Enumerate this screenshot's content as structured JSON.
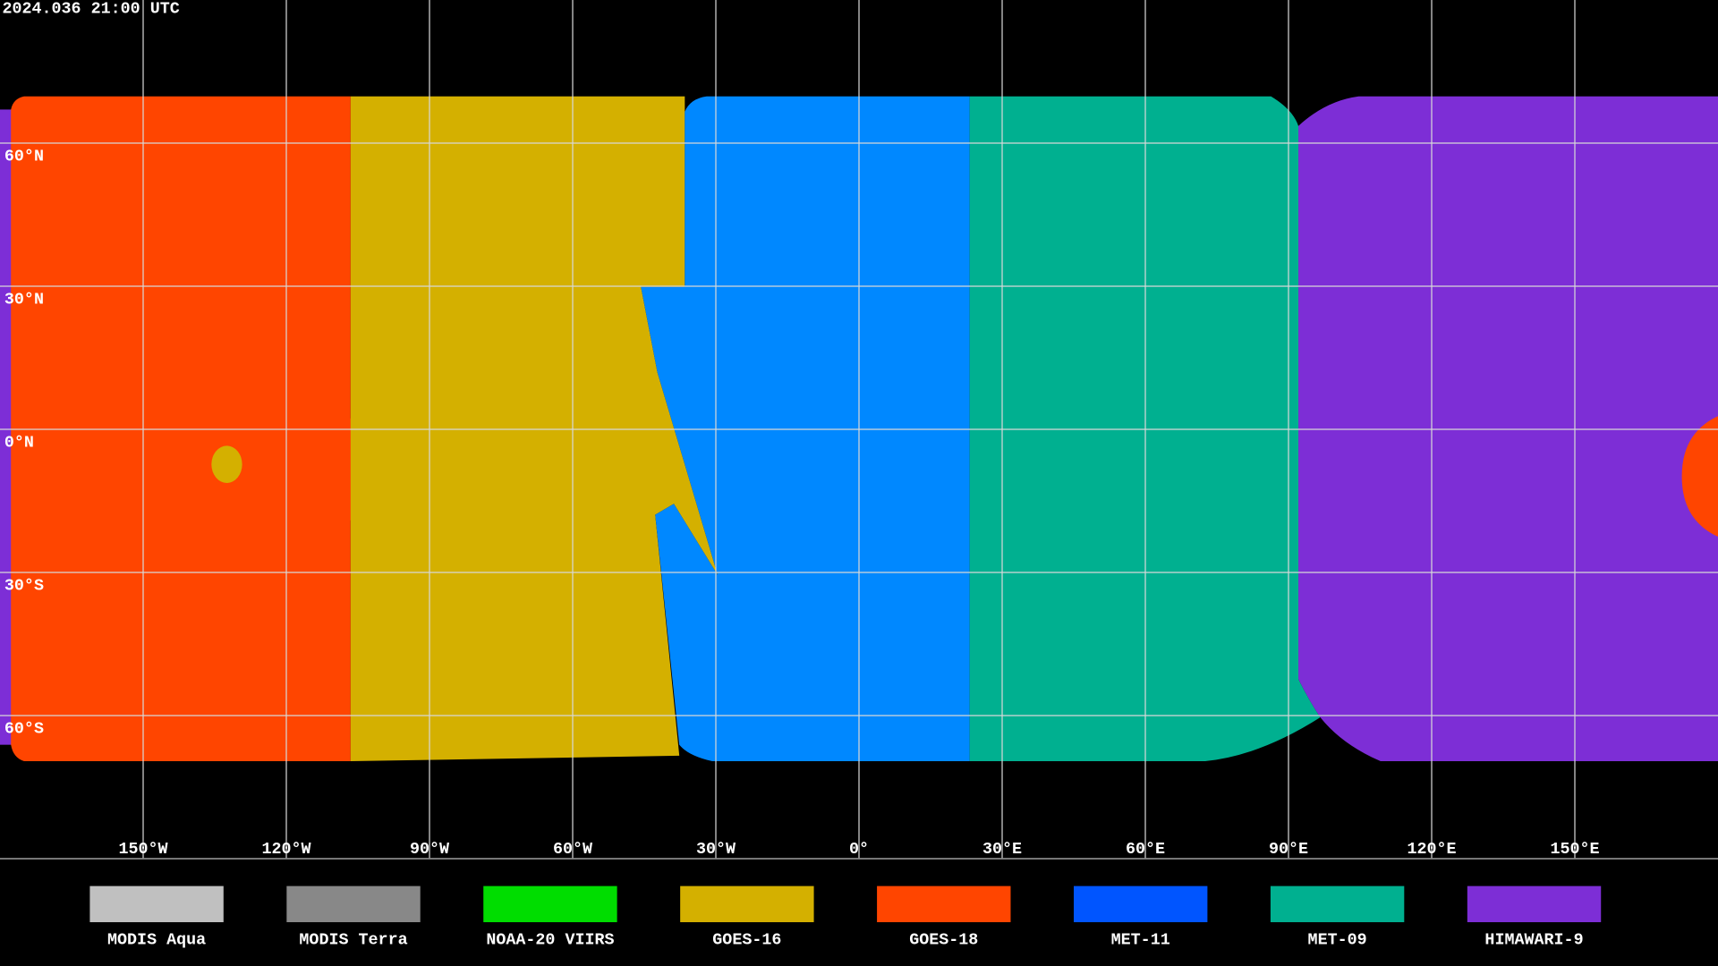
{
  "header": {
    "timestamp": "2024.036 21:00 UTC"
  },
  "map": {
    "latitude_labels": [
      "60°N",
      "30°N",
      "0°N",
      "30°S",
      "60°S"
    ],
    "longitude_labels": [
      "150°W",
      "120°W",
      "90°W",
      "60°W",
      "30°W",
      "0°",
      "30°E",
      "60°E",
      "90°E",
      "120°E",
      "150°E"
    ]
  },
  "legend": {
    "items": [
      {
        "name": "MODIS Aqua",
        "color": "#c0c0c0"
      },
      {
        "name": "MODIS Terra",
        "color": "#888888"
      },
      {
        "name": "NOAA-20 VIIRS",
        "color": "#00dd00"
      },
      {
        "name": "GOES-16",
        "color": "#d4b000"
      },
      {
        "name": "GOES-18",
        "color": "#ff4500"
      },
      {
        "name": "MET-11",
        "color": "#0055ff"
      },
      {
        "name": "MET-09",
        "color": "#00b090"
      },
      {
        "name": "HIMAWARI-9",
        "color": "#7d2ed6"
      }
    ]
  }
}
